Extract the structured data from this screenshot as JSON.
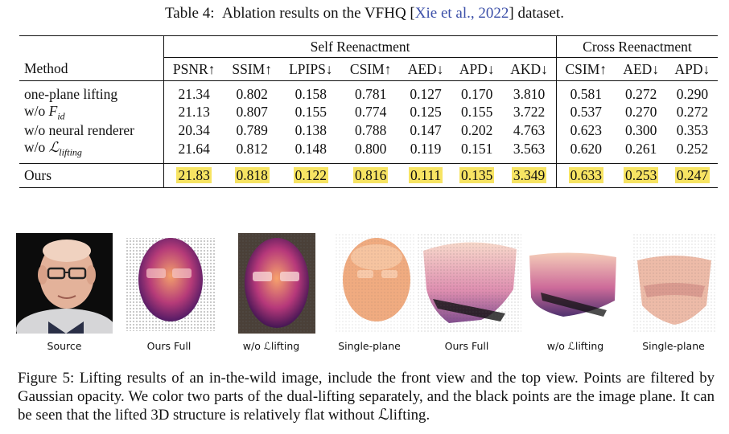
{
  "table": {
    "caption_prefix": "Table 4:",
    "caption_text": "Ablation results on the VFHQ [",
    "citation": "Xie et al., 2022",
    "caption_suffix": "] dataset.",
    "group_self": "Self Reenactment",
    "group_cross": "Cross Reenactment",
    "method_header": "Method",
    "columns": [
      "PSNR↑",
      "SSIM↑",
      "LPIPS↓",
      "CSIM↑",
      "AED↓",
      "APD↓",
      "AKD↓",
      "CSIM↑",
      "AED↓",
      "APD↓"
    ],
    "rows": [
      {
        "method": "one-plane lifting",
        "values": [
          "21.34",
          "0.802",
          "0.158",
          "0.781",
          "0.127",
          "0.170",
          "3.810",
          "0.581",
          "0.272",
          "0.290"
        ]
      },
      {
        "method_prefix": "w/o ",
        "method_math": "F",
        "method_sub": "id",
        "values": [
          "21.13",
          "0.807",
          "0.155",
          "0.774",
          "0.125",
          "0.155",
          "3.722",
          "0.537",
          "0.270",
          "0.272"
        ]
      },
      {
        "method": "w/o neural renderer",
        "values": [
          "20.34",
          "0.789",
          "0.138",
          "0.788",
          "0.147",
          "0.202",
          "4.763",
          "0.623",
          "0.300",
          "0.353"
        ]
      },
      {
        "method_prefix": "w/o ",
        "method_math": "ℒ",
        "method_sub": "lifting",
        "values": [
          "21.64",
          "0.812",
          "0.148",
          "0.800",
          "0.119",
          "0.151",
          "3.563",
          "0.620",
          "0.261",
          "0.252"
        ]
      }
    ],
    "ours": {
      "method": "Ours",
      "values": [
        "21.83",
        "0.818",
        "0.122",
        "0.816",
        "0.111",
        "0.135",
        "3.349",
        "0.633",
        "0.253",
        "0.247"
      ]
    }
  },
  "figure": {
    "labels": [
      "Source",
      "Ours Full",
      "w/o ℒlifting",
      "Single-plane",
      "Ours Full",
      "w/o ℒlifting",
      "Single-plane"
    ],
    "caption": "Figure 5:  Lifting results of an in-the-wild image, include the front view and the top view. Points are filtered by Gaussian opacity. We color two parts of the dual-lifting separately, and the black points are the image plane. It can be seen that the lifted 3D structure is relatively flat without ℒlifting."
  },
  "colors": {
    "highlight": "#f7e463",
    "citation": "#3b4fa8"
  }
}
